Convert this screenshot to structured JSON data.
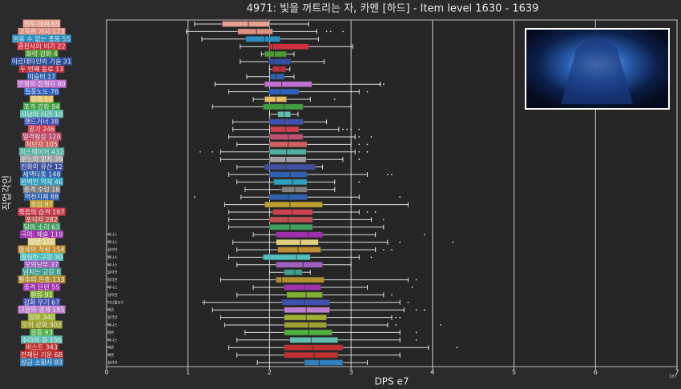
{
  "chart_data": {
    "type": "box",
    "title": "4971: 빛을 꺼트리는 자, 카멘 [하드] - Item level 1630 - 1639",
    "xlabel": "DPS e7",
    "ylabel": "직업각인",
    "scale_note": "1e7",
    "xlim": [
      0,
      7
    ],
    "xticks": [
      0,
      1,
      2,
      3,
      4,
      5,
      6,
      7
    ],
    "grid": true,
    "categories": [
      "전투 태세 65",
      "고독한 기사 173",
      "멈출 수 없는 충동 55",
      "광전사의 비기 22",
      "화력 강화 4",
      "아르데타인의 기술 31",
      "두 번째 동료 13",
      "이슬비 17",
      "만월의 집행자 80",
      "질풍노도 76",
      "갈증 10",
      "포격 강화 94",
      "사냥의 시간 10",
      "핸드거너 38",
      "광기 246",
      "일격필살 120",
      "처단자 105",
      "피스메이커 432",
      "분노의 망치 39",
      "진화의 유산 12",
      "세맥타통 148",
      "완벽한 억제 46",
      "충격 수련 18",
      "역천지체 88",
      "초심 97",
      "죽음의 습격 167",
      "포식자 282",
      "달의 소리 63",
      "극의: 체술 119",
      "절정 156",
      "황제의 칙령 154",
      "절실한 구원 30",
      "오의난무 37",
      "넘치는 교감 8",
      "황후의 은총 133",
      "충격 단련 55",
      "환류 91",
      "강화 무기 67",
      "그믐의 경계 185",
      "점화 340",
      "오의 강화 302",
      "갈증 93",
      "수라의 길 156",
      "버스트 343",
      "잔재된 기운 68",
      "상급 소환사 83"
    ],
    "row_notes": [
      null,
      null,
      null,
      null,
      null,
      null,
      null,
      null,
      null,
      null,
      null,
      null,
      null,
      null,
      null,
      null,
      null,
      null,
      null,
      null,
      null,
      null,
      null,
      null,
      null,
      null,
      null,
      null,
      "베니스",
      "베니스",
      "실리안",
      "베니스",
      "베니스",
      "실리안",
      "실리안",
      "베니스",
      "실리안",
      "아브렐슈드",
      "베른",
      "실리안",
      "베니스",
      "베른",
      "베니스",
      "베른",
      "베른",
      "실리안"
    ],
    "colors": [
      "#e8a090",
      "#e09080",
      "#2a8fc0",
      "#d03040",
      "#4a9a30",
      "#3050a0",
      "#c03040",
      "#3060b0",
      "#c070d0",
      "#3060c0",
      "#e8c060",
      "#40a040",
      "#60c0b0",
      "#4050b0",
      "#d04050",
      "#c05070",
      "#d06060",
      "#50b0a0",
      "#a0a0a0",
      "#4050a0",
      "#3060b0",
      "#30a0c0",
      "#808080",
      "#3060b0",
      "#c0a030",
      "#d04050",
      "#c05050",
      "#40a060",
      "#a030b0",
      "#e0d080",
      "#c09030",
      "#50c0c0",
      "#a060c0",
      "#40a090",
      "#b09030",
      "#a030b0",
      "#80b030",
      "#4050b0",
      "#c080d0",
      "#a0b030",
      "#a0a030",
      "#50b040",
      "#60c0b0",
      "#c03030",
      "#c03030",
      "#3080c0"
    ],
    "boxes": [
      {
        "low": 1.08,
        "q1": 1.42,
        "median": 1.74,
        "q3": 2.0,
        "high": 2.48,
        "outliers": []
      },
      {
        "low": 0.98,
        "q1": 1.61,
        "median": 1.84,
        "q3": 2.04,
        "high": 2.58,
        "outliers": [
          2.7,
          2.75,
          2.9
        ]
      },
      {
        "low": 1.17,
        "q1": 1.71,
        "median": 1.94,
        "q3": 2.13,
        "high": 2.6,
        "outliers": []
      },
      {
        "low": 1.64,
        "q1": 1.99,
        "median": 2.04,
        "q3": 2.48,
        "high": 3.02,
        "outliers": []
      },
      {
        "low": 1.9,
        "q1": 1.94,
        "median": 2.06,
        "q3": 2.21,
        "high": 2.3,
        "outliers": []
      },
      {
        "low": 1.64,
        "q1": 1.99,
        "median": 2.05,
        "q3": 2.26,
        "high": 2.67,
        "outliers": []
      },
      {
        "low": 2.0,
        "q1": 2.04,
        "median": 2.13,
        "q3": 2.2,
        "high": 2.25,
        "outliers": []
      },
      {
        "low": 1.72,
        "q1": 2.01,
        "median": 2.08,
        "q3": 2.18,
        "high": 2.3,
        "outliers": []
      },
      {
        "low": 1.33,
        "q1": 1.94,
        "median": 2.15,
        "q3": 2.52,
        "high": 3.36,
        "outliers": [
          3.35,
          3.4
        ]
      },
      {
        "low": 1.5,
        "q1": 1.99,
        "median": 2.13,
        "q3": 2.36,
        "high": 3.1,
        "outliers": [
          3.2
        ]
      },
      {
        "low": 1.8,
        "q1": 1.94,
        "median": 2.08,
        "q3": 2.21,
        "high": 2.5,
        "outliers": [
          2.8
        ]
      },
      {
        "low": 1.3,
        "q1": 1.92,
        "median": 2.18,
        "q3": 2.41,
        "high": 3.0,
        "outliers": []
      },
      {
        "low": 2.0,
        "q1": 2.1,
        "median": 2.18,
        "q3": 2.26,
        "high": 2.35,
        "outliers": []
      },
      {
        "low": 1.55,
        "q1": 2.0,
        "median": 2.18,
        "q3": 2.41,
        "high": 2.7,
        "outliers": []
      },
      {
        "low": 1.55,
        "q1": 2.01,
        "median": 2.2,
        "q3": 2.36,
        "high": 2.85,
        "outliers": [
          2.9,
          2.95,
          3.0,
          3.1
        ]
      },
      {
        "low": 1.5,
        "q1": 2.0,
        "median": 2.23,
        "q3": 2.41,
        "high": 3.05,
        "outliers": [
          3.1,
          3.25
        ]
      },
      {
        "low": 1.6,
        "q1": 2.0,
        "median": 2.23,
        "q3": 2.46,
        "high": 3.0,
        "outliers": [
          3.1,
          3.2
        ]
      },
      {
        "low": 1.4,
        "q1": 2.0,
        "median": 2.21,
        "q3": 2.45,
        "high": 3.05,
        "outliers": [
          1.15,
          1.3,
          3.1,
          3.2
        ]
      },
      {
        "low": 1.4,
        "q1": 2.0,
        "median": 2.2,
        "q3": 2.45,
        "high": 2.9,
        "outliers": [
          3.1
        ]
      },
      {
        "low": 1.6,
        "q1": 1.94,
        "median": 2.2,
        "q3": 2.56,
        "high": 2.65,
        "outliers": []
      },
      {
        "low": 1.5,
        "q1": 2.0,
        "median": 2.25,
        "q3": 2.46,
        "high": 3.2,
        "outliers": [
          3.45,
          3.5
        ]
      },
      {
        "low": 1.6,
        "q1": 2.05,
        "median": 2.28,
        "q3": 2.46,
        "high": 2.8,
        "outliers": [
          3.1
        ]
      },
      {
        "low": 1.7,
        "q1": 2.15,
        "median": 2.31,
        "q3": 2.46,
        "high": 2.8,
        "outliers": []
      },
      {
        "low": 1.65,
        "q1": 2.0,
        "median": 2.23,
        "q3": 2.46,
        "high": 3.1,
        "outliers": [
          1.08,
          3.6
        ]
      },
      {
        "low": 1.45,
        "q1": 1.94,
        "median": 2.25,
        "q3": 2.65,
        "high": 3.7,
        "outliers": []
      },
      {
        "low": 1.5,
        "q1": 2.04,
        "median": 2.28,
        "q3": 2.53,
        "high": 3.1,
        "outliers": [
          3.2,
          3.3
        ]
      },
      {
        "low": 1.5,
        "q1": 2.0,
        "median": 2.23,
        "q3": 2.53,
        "high": 3.25,
        "outliers": [
          3.4
        ]
      },
      {
        "low": 1.5,
        "q1": 2.0,
        "median": 2.25,
        "q3": 2.53,
        "high": 3.4,
        "outliers": []
      },
      {
        "low": 1.8,
        "q1": 2.08,
        "median": 2.48,
        "q3": 2.65,
        "high": 3.3,
        "outliers": [
          3.9
        ]
      },
      {
        "low": 1.55,
        "q1": 2.08,
        "median": 2.38,
        "q3": 2.6,
        "high": 3.45,
        "outliers": [
          3.6,
          4.25
        ]
      },
      {
        "low": 1.6,
        "q1": 2.1,
        "median": 2.35,
        "q3": 2.63,
        "high": 3.3,
        "outliers": [
          3.4,
          3.5
        ]
      },
      {
        "low": 1.5,
        "q1": 1.92,
        "median": 2.33,
        "q3": 2.5,
        "high": 3.1,
        "outliers": [
          3.25
        ]
      },
      {
        "low": 1.6,
        "q1": 2.08,
        "median": 2.41,
        "q3": 2.65,
        "high": 3.0,
        "outliers": []
      },
      {
        "low": 2.0,
        "q1": 2.18,
        "median": 2.31,
        "q3": 2.4,
        "high": 2.5,
        "outliers": []
      },
      {
        "low": 1.4,
        "q1": 2.08,
        "median": 2.15,
        "q3": 2.67,
        "high": 3.7,
        "outliers": [
          3.8
        ]
      },
      {
        "low": 1.8,
        "q1": 2.18,
        "median": 2.43,
        "q3": 2.63,
        "high": 3.2,
        "outliers": [
          3.75
        ]
      },
      {
        "low": 1.6,
        "q1": 2.21,
        "median": 2.45,
        "q3": 2.65,
        "high": 3.4,
        "outliers": [
          3.5
        ]
      },
      {
        "low": 1.2,
        "q1": 2.15,
        "median": 2.43,
        "q3": 2.74,
        "high": 3.6,
        "outliers": [
          1.18,
          3.7
        ]
      },
      {
        "low": 1.3,
        "q1": 2.18,
        "median": 2.45,
        "q3": 2.74,
        "high": 3.65,
        "outliers": [
          3.8,
          3.9
        ]
      },
      {
        "low": 1.4,
        "q1": 2.18,
        "median": 2.45,
        "q3": 2.7,
        "high": 3.5,
        "outliers": [
          3.55,
          3.6
        ]
      },
      {
        "low": 1.45,
        "q1": 2.18,
        "median": 2.48,
        "q3": 2.7,
        "high": 3.45,
        "outliers": [
          3.55,
          4.1
        ]
      },
      {
        "low": 1.7,
        "q1": 2.18,
        "median": 2.48,
        "q3": 2.77,
        "high": 3.6,
        "outliers": [
          3.8
        ]
      },
      {
        "low": 1.6,
        "q1": 2.25,
        "median": 2.51,
        "q3": 2.84,
        "high": 3.6,
        "outliers": [
          3.8
        ]
      },
      {
        "low": 1.5,
        "q1": 2.18,
        "median": 2.53,
        "q3": 2.9,
        "high": 3.95,
        "outliers": [
          4.3
        ]
      },
      {
        "low": 1.6,
        "q1": 2.18,
        "median": 2.55,
        "q3": 2.84,
        "high": 3.6,
        "outliers": []
      },
      {
        "low": 1.85,
        "q1": 2.43,
        "median": 2.61,
        "q3": 2.9,
        "high": 3.2,
        "outliers": []
      }
    ]
  }
}
